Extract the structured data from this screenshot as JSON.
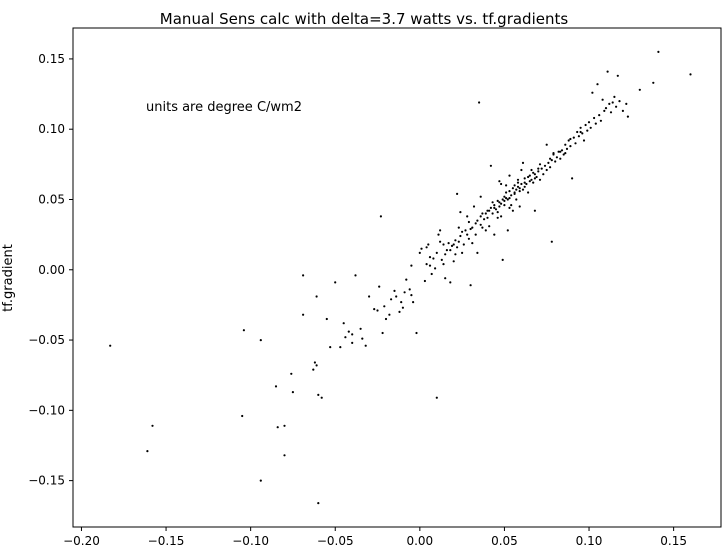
{
  "chart_data": {
    "type": "scatter",
    "title": "Manual Sens calc with  delta=3.7 watts vs. tf.gradients",
    "xlabel": "",
    "ylabel": "tf.gradient",
    "annotation": "units are degree C/wm2",
    "xlim": [
      -0.205,
      0.178
    ],
    "ylim": [
      -0.183,
      0.172
    ],
    "xticks": [
      -0.2,
      -0.15,
      -0.1,
      -0.05,
      0.0,
      0.05,
      0.1,
      0.15
    ],
    "xtick_labels": [
      "−0.20",
      "−0.15",
      "−0.10",
      "−0.05",
      "0.00",
      "0.05",
      "0.10",
      "0.15"
    ],
    "yticks": [
      -0.15,
      -0.1,
      -0.05,
      0.0,
      0.05,
      0.1,
      0.15
    ],
    "ytick_labels": [
      "−0.15",
      "−0.10",
      "−0.05",
      "0.00",
      "0.05",
      "0.10",
      "0.15"
    ],
    "grid": false,
    "marker_color": "#000000",
    "points": [
      [
        -0.183,
        -0.054
      ],
      [
        -0.158,
        -0.111
      ],
      [
        -0.161,
        -0.129
      ],
      [
        -0.104,
        -0.043
      ],
      [
        -0.105,
        -0.104
      ],
      [
        -0.094,
        -0.05
      ],
      [
        -0.094,
        -0.15
      ],
      [
        -0.085,
        -0.083
      ],
      [
        -0.084,
        -0.112
      ],
      [
        -0.08,
        -0.111
      ],
      [
        -0.08,
        -0.132
      ],
      [
        -0.076,
        -0.074
      ],
      [
        -0.075,
        -0.087
      ],
      [
        -0.069,
        -0.004
      ],
      [
        -0.069,
        -0.032
      ],
      [
        -0.063,
        -0.071
      ],
      [
        -0.062,
        -0.066
      ],
      [
        -0.061,
        -0.068
      ],
      [
        -0.061,
        -0.019
      ],
      [
        -0.06,
        -0.089
      ],
      [
        -0.058,
        -0.091
      ],
      [
        -0.06,
        -0.166
      ],
      [
        -0.055,
        -0.035
      ],
      [
        -0.053,
        -0.055
      ],
      [
        -0.05,
        -0.009
      ],
      [
        -0.047,
        -0.055
      ],
      [
        -0.045,
        -0.038
      ],
      [
        -0.044,
        -0.048
      ],
      [
        -0.042,
        -0.044
      ],
      [
        -0.04,
        -0.046
      ],
      [
        -0.04,
        -0.052
      ],
      [
        -0.038,
        -0.004
      ],
      [
        -0.035,
        -0.042
      ],
      [
        -0.034,
        -0.049
      ],
      [
        -0.032,
        -0.054
      ],
      [
        -0.03,
        -0.019
      ],
      [
        -0.027,
        -0.028
      ],
      [
        -0.025,
        -0.029
      ],
      [
        -0.024,
        -0.012
      ],
      [
        -0.023,
        0.038
      ],
      [
        -0.022,
        -0.045
      ],
      [
        -0.021,
        -0.026
      ],
      [
        -0.02,
        -0.035
      ],
      [
        -0.018,
        -0.032
      ],
      [
        -0.017,
        -0.021
      ],
      [
        -0.015,
        -0.015
      ],
      [
        -0.014,
        -0.019
      ],
      [
        -0.012,
        -0.03
      ],
      [
        -0.011,
        -0.023
      ],
      [
        -0.01,
        -0.027
      ],
      [
        -0.009,
        -0.016
      ],
      [
        -0.008,
        -0.007
      ],
      [
        -0.006,
        -0.014
      ],
      [
        -0.005,
        -0.018
      ],
      [
        -0.004,
        -0.023
      ],
      [
        -0.002,
        -0.045
      ],
      [
        0.0,
        0.012
      ],
      [
        0.001,
        0.015
      ],
      [
        0.003,
        -0.008
      ],
      [
        0.004,
        0.004
      ],
      [
        0.004,
        0.016
      ],
      [
        0.005,
        0.018
      ],
      [
        0.006,
        0.003
      ],
      [
        0.007,
        -0.003
      ],
      [
        0.008,
        0.008
      ],
      [
        0.009,
        0.001
      ],
      [
        0.01,
        0.012
      ],
      [
        0.01,
        -0.091
      ],
      [
        0.011,
        0.025
      ],
      [
        0.012,
        0.02
      ],
      [
        0.013,
        0.007
      ],
      [
        0.014,
        0.004
      ],
      [
        0.015,
        0.011
      ],
      [
        0.015,
        -0.006
      ],
      [
        0.016,
        0.014
      ],
      [
        0.017,
        0.019
      ],
      [
        0.018,
        0.014
      ],
      [
        0.018,
        -0.009
      ],
      [
        0.019,
        0.017
      ],
      [
        0.02,
        0.018
      ],
      [
        0.02,
        0.006
      ],
      [
        0.021,
        0.021
      ],
      [
        0.022,
        0.016
      ],
      [
        0.022,
        0.054
      ],
      [
        0.023,
        0.02
      ],
      [
        0.024,
        0.024
      ],
      [
        0.025,
        0.012
      ],
      [
        0.025,
        0.027
      ],
      [
        0.026,
        0.018
      ],
      [
        0.027,
        0.028
      ],
      [
        0.028,
        0.025
      ],
      [
        0.028,
        0.038
      ],
      [
        0.029,
        0.022
      ],
      [
        0.03,
        0.029
      ],
      [
        0.03,
        -0.011
      ],
      [
        0.031,
        0.03
      ],
      [
        0.032,
        0.045
      ],
      [
        0.033,
        0.025
      ],
      [
        0.033,
        0.033
      ],
      [
        0.034,
        0.035
      ],
      [
        0.034,
        0.012
      ],
      [
        0.035,
        0.119
      ],
      [
        0.036,
        0.032
      ],
      [
        0.036,
        0.038
      ],
      [
        0.037,
        0.03
      ],
      [
        0.038,
        0.036
      ],
      [
        0.039,
        0.04
      ],
      [
        0.04,
        0.037
      ],
      [
        0.04,
        0.042
      ],
      [
        0.041,
        0.031
      ],
      [
        0.042,
        0.044
      ],
      [
        0.042,
        0.074
      ],
      [
        0.043,
        0.04
      ],
      [
        0.044,
        0.046
      ],
      [
        0.044,
        0.025
      ],
      [
        0.045,
        0.043
      ],
      [
        0.046,
        0.041
      ],
      [
        0.046,
        0.049
      ],
      [
        0.047,
        0.045
      ],
      [
        0.047,
        0.063
      ],
      [
        0.048,
        0.047
      ],
      [
        0.048,
        0.038
      ],
      [
        0.049,
        0.05
      ],
      [
        0.049,
        0.007
      ],
      [
        0.05,
        0.052
      ],
      [
        0.05,
        0.046
      ],
      [
        0.051,
        0.055
      ],
      [
        0.051,
        0.06
      ],
      [
        0.052,
        0.05
      ],
      [
        0.052,
        0.028
      ],
      [
        0.053,
        0.056
      ],
      [
        0.053,
        0.067
      ],
      [
        0.054,
        0.053
      ],
      [
        0.054,
        0.046
      ],
      [
        0.055,
        0.058
      ],
      [
        0.055,
        0.042
      ],
      [
        0.056,
        0.06
      ],
      [
        0.056,
        0.055
      ],
      [
        0.057,
        0.057
      ],
      [
        0.057,
        0.05
      ],
      [
        0.058,
        0.062
      ],
      [
        0.058,
        0.064
      ],
      [
        0.059,
        0.058
      ],
      [
        0.059,
        0.045
      ],
      [
        0.06,
        0.061
      ],
      [
        0.061,
        0.076
      ],
      [
        0.061,
        0.057
      ],
      [
        0.062,
        0.065
      ],
      [
        0.063,
        0.061
      ],
      [
        0.064,
        0.055
      ],
      [
        0.065,
        0.067
      ],
      [
        0.066,
        0.064
      ],
      [
        0.066,
        0.071
      ],
      [
        0.067,
        0.062
      ],
      [
        0.068,
        0.068
      ],
      [
        0.068,
        0.042
      ],
      [
        0.069,
        0.066
      ],
      [
        0.07,
        0.07
      ],
      [
        0.071,
        0.064
      ],
      [
        0.072,
        0.072
      ],
      [
        0.073,
        0.068
      ],
      [
        0.074,
        0.074
      ],
      [
        0.075,
        0.071
      ],
      [
        0.075,
        0.089
      ],
      [
        0.076,
        0.076
      ],
      [
        0.077,
        0.073
      ],
      [
        0.078,
        0.078
      ],
      [
        0.078,
        0.02
      ],
      [
        0.079,
        0.082
      ],
      [
        0.08,
        0.077
      ],
      [
        0.081,
        0.08
      ],
      [
        0.082,
        0.084
      ],
      [
        0.083,
        0.079
      ],
      [
        0.084,
        0.085
      ],
      [
        0.085,
        0.082
      ],
      [
        0.086,
        0.089
      ],
      [
        0.087,
        0.086
      ],
      [
        0.088,
        0.092
      ],
      [
        0.089,
        0.088
      ],
      [
        0.09,
        0.065
      ],
      [
        0.091,
        0.094
      ],
      [
        0.092,
        0.09
      ],
      [
        0.093,
        0.098
      ],
      [
        0.094,
        0.095
      ],
      [
        0.095,
        0.101
      ],
      [
        0.096,
        0.097
      ],
      [
        0.097,
        0.092
      ],
      [
        0.098,
        0.103
      ],
      [
        0.099,
        0.099
      ],
      [
        0.1,
        0.105
      ],
      [
        0.101,
        0.101
      ],
      [
        0.102,
        0.126
      ],
      [
        0.103,
        0.108
      ],
      [
        0.104,
        0.104
      ],
      [
        0.105,
        0.132
      ],
      [
        0.106,
        0.11
      ],
      [
        0.107,
        0.106
      ],
      [
        0.108,
        0.121
      ],
      [
        0.109,
        0.113
      ],
      [
        0.11,
        0.115
      ],
      [
        0.111,
        0.141
      ],
      [
        0.112,
        0.118
      ],
      [
        0.113,
        0.112
      ],
      [
        0.114,
        0.119
      ],
      [
        0.115,
        0.123
      ],
      [
        0.116,
        0.116
      ],
      [
        0.117,
        0.138
      ],
      [
        0.118,
        0.12
      ],
      [
        0.12,
        0.113
      ],
      [
        0.122,
        0.118
      ],
      [
        0.123,
        0.109
      ],
      [
        0.13,
        0.128
      ],
      [
        0.138,
        0.133
      ],
      [
        0.141,
        0.155
      ],
      [
        0.16,
        0.139
      ],
      [
        -0.005,
        0.003
      ],
      [
        0.006,
        0.009
      ],
      [
        0.014,
        0.018
      ],
      [
        0.023,
        0.03
      ],
      [
        0.029,
        0.034
      ],
      [
        0.037,
        0.04
      ],
      [
        0.043,
        0.048
      ],
      [
        0.051,
        0.051
      ],
      [
        0.058,
        0.059
      ],
      [
        0.064,
        0.066
      ],
      [
        0.07,
        0.072
      ],
      [
        0.077,
        0.079
      ],
      [
        0.083,
        0.084
      ],
      [
        0.089,
        0.093
      ],
      [
        0.095,
        0.098
      ],
      [
        0.021,
        0.011
      ],
      [
        0.031,
        0.019
      ],
      [
        0.039,
        0.028
      ],
      [
        0.046,
        0.037
      ],
      [
        0.053,
        0.044
      ],
      [
        0.012,
        0.028
      ],
      [
        0.024,
        0.041
      ],
      [
        0.036,
        0.052
      ],
      [
        0.048,
        0.061
      ],
      [
        0.06,
        0.071
      ],
      [
        0.062,
        0.059
      ],
      [
        0.067,
        0.069
      ],
      [
        0.071,
        0.075
      ],
      [
        0.079,
        0.083
      ],
      [
        0.086,
        0.083
      ],
      [
        0.041,
        0.042
      ],
      [
        0.044,
        0.044
      ],
      [
        0.047,
        0.048
      ],
      [
        0.05,
        0.049
      ],
      [
        0.053,
        0.051
      ],
      [
        0.056,
        0.054
      ],
      [
        0.059,
        0.056
      ],
      [
        0.062,
        0.062
      ],
      [
        0.065,
        0.063
      ],
      [
        0.068,
        0.065
      ]
    ]
  }
}
